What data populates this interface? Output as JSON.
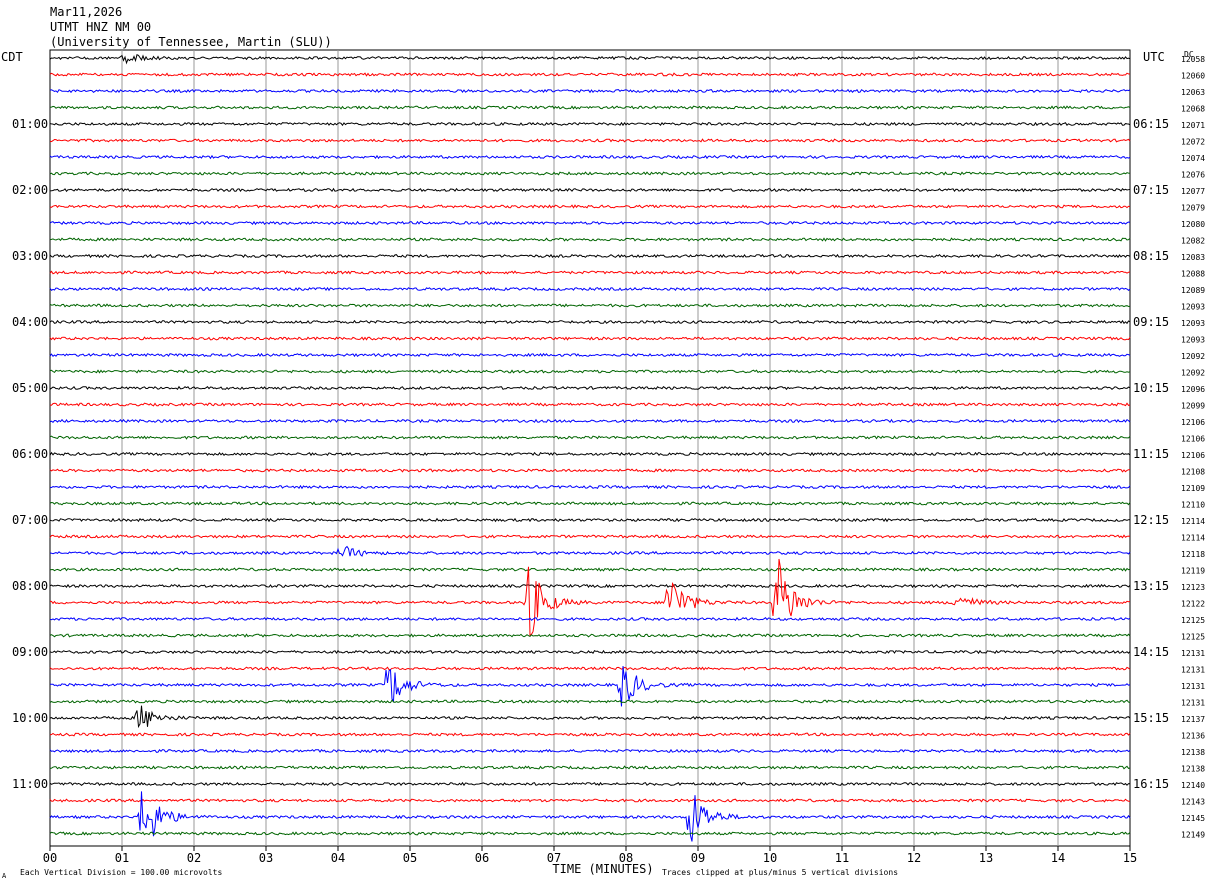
{
  "chart_data": {
    "type": "line",
    "title": "Mar11,2026",
    "subtitle_lines": [
      "UTMT HNZ NM 00",
      "(University of Tennessee, Martin (SLU))"
    ],
    "left_axis_label": "CDT",
    "right_axis_label": "UTC",
    "dc_label": "DC",
    "xlabel": "TIME (MINUTES)",
    "footer_left": "Each Vertical Division = 100.00 microvolts",
    "footer_mark": "A",
    "footer_right": "Traces clipped at plus/minus 5 vertical divisions",
    "xlim": [
      0,
      15
    ],
    "x_ticks": [
      "00",
      "01",
      "02",
      "03",
      "04",
      "05",
      "06",
      "07",
      "08",
      "09",
      "10",
      "11",
      "12",
      "13",
      "14",
      "15"
    ],
    "trace_colors": [
      "#000000",
      "#ff0000",
      "#0000ff",
      "#006400"
    ],
    "grid": true,
    "left_time_labels": [
      "01:00",
      "02:00",
      "03:00",
      "04:00",
      "05:00",
      "06:00",
      "07:00",
      "08:00",
      "09:00",
      "10:00",
      "11:00"
    ],
    "right_time_labels": [
      "06:15",
      "07:15",
      "08:15",
      "09:15",
      "10:15",
      "11:15",
      "12:15",
      "13:15",
      "14:15",
      "15:15",
      "16:15"
    ],
    "dc_offsets": [
      "12058",
      "12060",
      "12063",
      "12068",
      "12071",
      "12072",
      "12074",
      "12076",
      "12077",
      "12079",
      "12080",
      "12082",
      "12083",
      "12088",
      "12089",
      "12093",
      "12093",
      "12093",
      "12092",
      "12092",
      "12096",
      "12099",
      "12106",
      "12106",
      "12106",
      "12108",
      "12109",
      "12110",
      "12114",
      "12114",
      "12118",
      "12119",
      "12123",
      "12122",
      "12125",
      "12125",
      "12131",
      "12131",
      "12131",
      "12131",
      "12137",
      "12136",
      "12138",
      "12138",
      "12140",
      "12143",
      "12145",
      "12149"
    ],
    "events": [
      {
        "trace": 0,
        "minute": 1.05,
        "amplitude": 0.3
      },
      {
        "trace": 30,
        "minute": 4.05,
        "amplitude": 0.5
      },
      {
        "trace": 33,
        "minute": 6.65,
        "amplitude": 2.5
      },
      {
        "trace": 33,
        "minute": 8.6,
        "amplitude": 2.0
      },
      {
        "trace": 33,
        "minute": 10.1,
        "amplitude": 3.0
      },
      {
        "trace": 33,
        "minute": 12.6,
        "amplitude": 0.6
      },
      {
        "trace": 38,
        "minute": 4.7,
        "amplitude": 1.6
      },
      {
        "trace": 38,
        "minute": 7.95,
        "amplitude": 1.5
      },
      {
        "trace": 40,
        "minute": 1.25,
        "amplitude": 0.9
      },
      {
        "trace": 46,
        "minute": 1.3,
        "amplitude": 2.5
      },
      {
        "trace": 46,
        "minute": 8.9,
        "amplitude": 2.0
      }
    ]
  }
}
